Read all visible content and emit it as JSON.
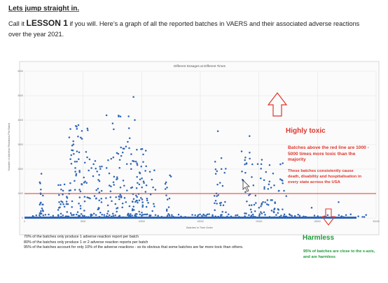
{
  "heading": "Lets jump straight in.",
  "intro": {
    "pre": "Call it ",
    "bold": "LESSON 1",
    "post": " if you will. Here’s a graph of all the reported batches in VAERS and their associated adverse reactions over the year 2021."
  },
  "chart_data": {
    "type": "scatter",
    "title": "Different Dosages at Different Times",
    "xlabel": "Batches in Time Order",
    "ylabel": "Number of Adverse Reactions Per Batch",
    "xlim": [
      0,
      30000
    ],
    "ylim": [
      0,
      6000
    ],
    "x_ticks": [
      "0",
      "5000",
      "10000",
      "15000",
      "20000",
      "25000",
      "30000"
    ],
    "y_ticks": [
      "0",
      "1000",
      "2000",
      "3000",
      "4000",
      "5000",
      "6000"
    ],
    "grid": true,
    "legend": "none",
    "point_color": "#2e64b5",
    "reference_line": {
      "y": 1000,
      "color": "#e0352b"
    },
    "clusters": [
      {
        "x_range": [
          1300,
          1600
        ],
        "y_max": 1800,
        "count": 22
      },
      {
        "x_range": [
          2800,
          3800
        ],
        "y_max": 1400,
        "count": 28
      },
      {
        "x_range": [
          3800,
          5400
        ],
        "y_max": 3800,
        "count": 70
      },
      {
        "x_range": [
          5400,
          7500
        ],
        "y_max": 2400,
        "count": 55
      },
      {
        "x_range": [
          7500,
          9500
        ],
        "y_max": 4200,
        "count": 75
      },
      {
        "x_range": [
          9500,
          11200
        ],
        "y_max": 2800,
        "count": 60
      },
      {
        "x_range": [
          12000,
          12500
        ],
        "y_max": 1800,
        "count": 14
      },
      {
        "x_range": [
          16200,
          17200
        ],
        "y_max": 2600,
        "count": 30
      },
      {
        "x_range": [
          18500,
          20500
        ],
        "y_max": 2700,
        "count": 50
      },
      {
        "x_range": [
          20500,
          22500
        ],
        "y_max": 2400,
        "count": 40
      }
    ],
    "outliers": [
      [
        9300,
        4950
      ],
      [
        7000,
        4200
      ],
      [
        4600,
        3800
      ],
      [
        16500,
        3550
      ],
      [
        19200,
        3350
      ],
      [
        26800,
        650
      ],
      [
        24500,
        420
      ]
    ]
  },
  "annotations": {
    "highly_toxic": "Highly toxic",
    "above_line": "Batches above the red line are 1000 - 5000 times more toxic than the majority",
    "consistently": "These batches consistently cause death, disability and hospitalisation in every state across the USA",
    "harmless": "Harmless",
    "close_axis": "95% of batches are close to the x-axis, and are harmless"
  },
  "colors": {
    "toxic": "#e0352b",
    "harmless": "#1e9a3a",
    "points": "#2e64b5"
  },
  "footnotes": [
    "70% of the batches only produce 1 adverse reaction report per batch",
    "80% of the batches only produce 1 or 2 adverse reaction reports per batch",
    "95% of the batches account for only 10% of the adverse reactions - so its obvious that some batches are far more toxic than others."
  ]
}
